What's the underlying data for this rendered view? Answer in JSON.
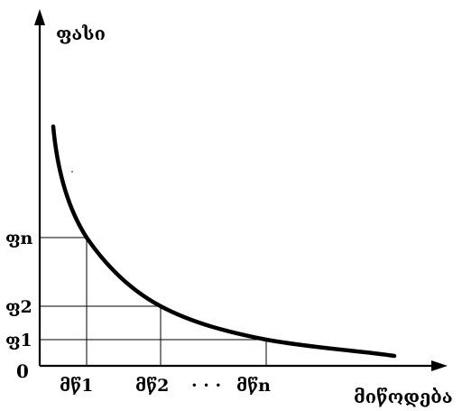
{
  "diagram": {
    "y_axis_label": "ფასი",
    "x_axis_label": "მიწოდება",
    "origin_label": "0",
    "price_levels": [
      "ფn",
      "ფ2",
      "ფ1"
    ],
    "quantity_levels": [
      "მწ1",
      "მწ2",
      "მწn"
    ],
    "ellipsis": "· · ·",
    "curve": "demand-like downward sloping convex curve",
    "colors": {
      "line": "#000000",
      "background": "#ffffff"
    }
  }
}
